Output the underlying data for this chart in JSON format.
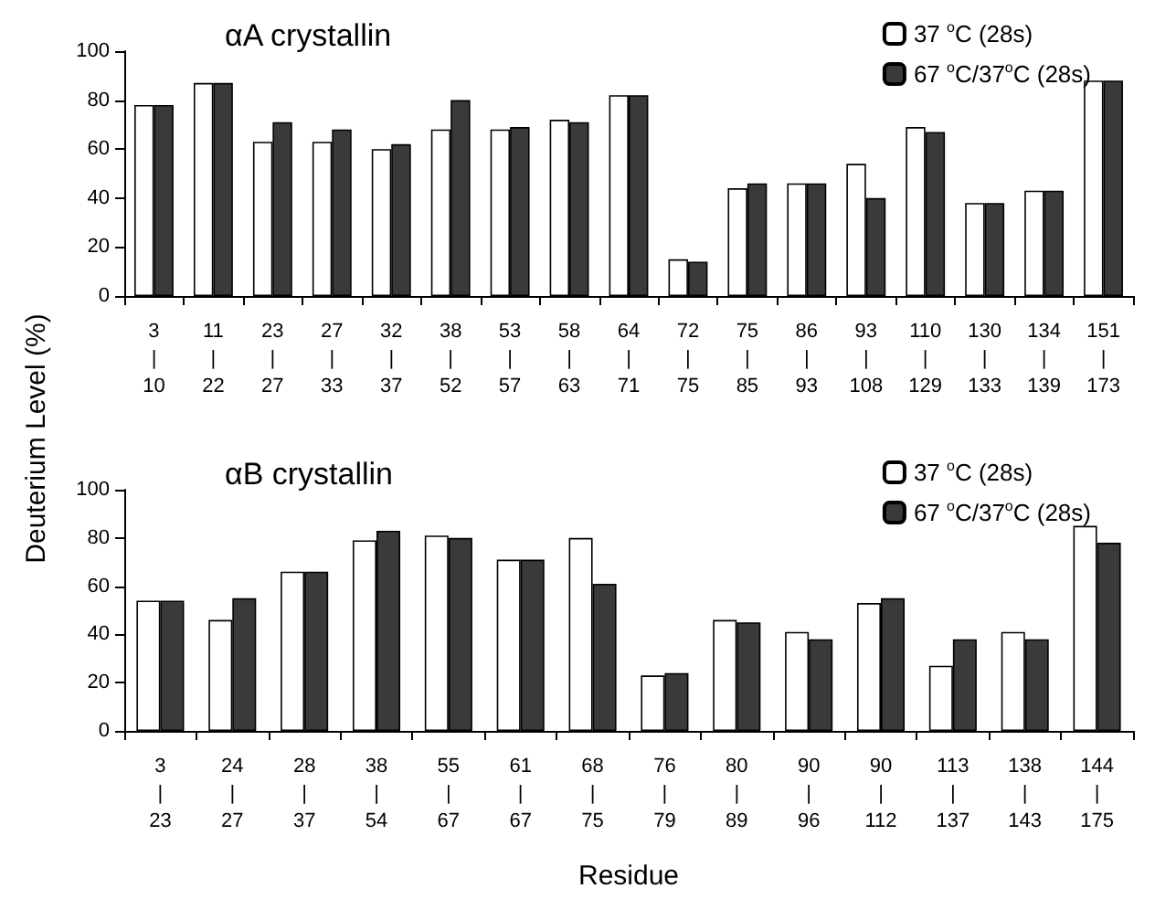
{
  "chart_data": [
    {
      "type": "bar",
      "title": "αA crystallin",
      "ylabel": "Deuterium Level (%)",
      "categories": [
        "3\n|\n10",
        "11\n|\n22",
        "23\n|\n27",
        "27\n|\n33",
        "32\n|\n37",
        "38\n|\n52",
        "53\n|\n57",
        "58\n|\n63",
        "64\n|\n71",
        "72\n|\n75",
        "75\n|\n85",
        "86\n|\n93",
        "93\n|\n108",
        "110\n|\n129",
        "130\n|\n133",
        "134\n|\n139",
        "151\n|\n173"
      ],
      "series": [
        {
          "name": "37 $^{o}$C (28s)",
          "color": "#ffffff",
          "values": [
            78,
            87,
            63,
            63,
            60,
            68,
            68,
            72,
            82,
            15,
            44,
            46,
            54,
            69,
            38,
            43,
            88
          ]
        },
        {
          "name": "67 $^{o}$C/37$^{o}$C (28s)",
          "color": "#3a3a3a",
          "values": [
            78,
            87,
            71,
            68,
            62,
            80,
            69,
            71,
            82,
            14,
            46,
            46,
            40,
            67,
            38,
            43,
            88
          ]
        }
      ],
      "ylim": [
        0,
        100
      ],
      "yticks": [
        0,
        20,
        40,
        60,
        80,
        100
      ],
      "grid": false,
      "legend": "top right"
    },
    {
      "type": "bar",
      "title": "αB crystallin",
      "xlabel": "Residue",
      "categories": [
        "3\n|\n23",
        "24\n|\n27",
        "28\n|\n37",
        "38\n|\n54",
        "55\n|\n67",
        "61\n|\n67",
        "68\n|\n75",
        "76\n|\n79",
        "80\n|\n89",
        "90\n|\n96",
        "90\n|\n112",
        "113\n|\n137",
        "138\n|\n143",
        "144\n|\n175"
      ],
      "series": [
        {
          "name": "37 $^{o}$C (28s)",
          "color": "#ffffff",
          "values": [
            54,
            46,
            66,
            79,
            81,
            71,
            80,
            23,
            46,
            41,
            53,
            27,
            41,
            85
          ]
        },
        {
          "name": "67 $^{o}$C/37$^{o}$C (28s)",
          "color": "#3a3a3a",
          "values": [
            54,
            55,
            66,
            83,
            80,
            71,
            61,
            24,
            45,
            38,
            55,
            38,
            38,
            78
          ]
        }
      ],
      "ylim": [
        0,
        100
      ],
      "yticks": [
        0,
        20,
        40,
        60,
        80,
        100
      ],
      "grid": false,
      "legend": "top right"
    }
  ]
}
